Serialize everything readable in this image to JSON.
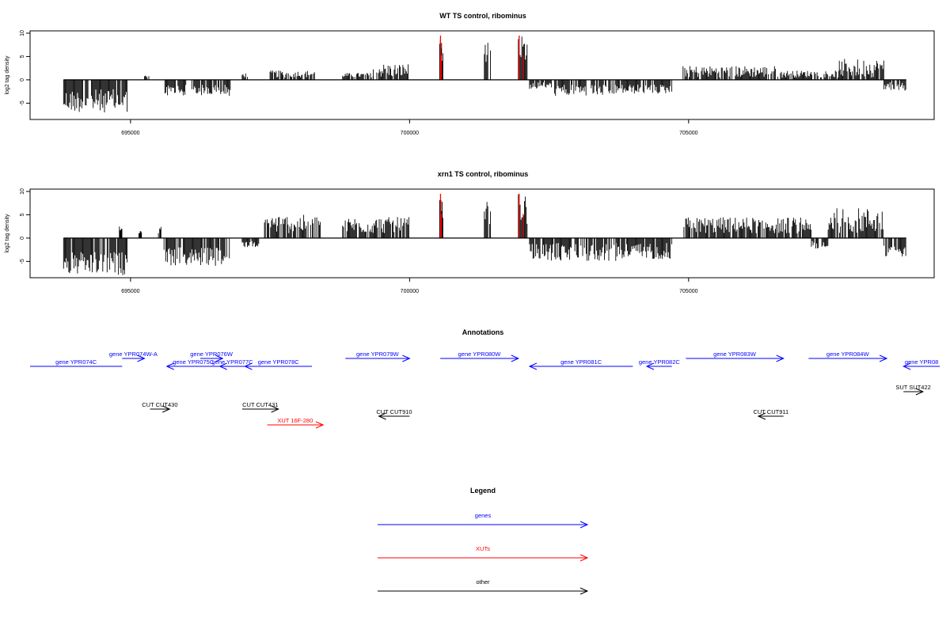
{
  "chart_data": [
    {
      "type": "bar",
      "title": "WT TS control, ribominus",
      "ylabel": "log2 tag density",
      "xlabel": "",
      "xlim": [
        693200,
        709400
      ],
      "ylim": [
        -8.5,
        10.5
      ],
      "xticks": [
        695000,
        700000,
        705000
      ],
      "xtick_labels": [
        "695000",
        "700000",
        "705000"
      ],
      "yticks": [
        -5,
        0,
        5,
        10
      ],
      "ytick_labels": [
        "-5",
        "0",
        "5",
        "10"
      ],
      "baseline_x": [
        693800,
        708900
      ],
      "highlight_color": "#ff0000",
      "bar_color": "#000000",
      "segments": [
        {
          "x": [
            693800,
            694950
          ],
          "y": [
            -2,
            -7
          ]
        },
        {
          "x": [
            695250,
            695350
          ],
          "y": [
            0.5,
            1
          ]
        },
        {
          "x": [
            695600,
            696000
          ],
          "y": [
            -1,
            -3.5
          ]
        },
        {
          "x": [
            696100,
            696800
          ],
          "y": [
            -1,
            -3.5
          ]
        },
        {
          "x": [
            697000,
            697100
          ],
          "y": [
            0.5,
            1.5
          ]
        },
        {
          "x": [
            697500,
            698300
          ],
          "y": [
            0.5,
            2
          ]
        },
        {
          "x": [
            698800,
            699350
          ],
          "y": [
            0.5,
            1.5
          ]
        },
        {
          "x": [
            699350,
            700000
          ],
          "y": [
            0.5,
            3.5
          ]
        },
        {
          "x": [
            700540,
            700600
          ],
          "y": [
            4,
            9.5
          ],
          "highlight": true
        },
        {
          "x": [
            701340,
            701450
          ],
          "y": [
            3,
            8
          ]
        },
        {
          "x": [
            701950,
            702120
          ],
          "y": [
            3,
            9.5
          ],
          "highlight": true
        },
        {
          "x": [
            702150,
            702550
          ],
          "y": [
            -0.5,
            -2
          ]
        },
        {
          "x": [
            702600,
            703700
          ],
          "y": [
            -1,
            -3.5
          ]
        },
        {
          "x": [
            703700,
            704700
          ],
          "y": [
            -1,
            -3
          ]
        },
        {
          "x": [
            704900,
            706600
          ],
          "y": [
            0.5,
            3
          ]
        },
        {
          "x": [
            706600,
            707700
          ],
          "y": [
            0.5,
            2
          ]
        },
        {
          "x": [
            707700,
            708500
          ],
          "y": [
            0.5,
            4.5
          ]
        },
        {
          "x": [
            708500,
            708900
          ],
          "y": [
            -0.5,
            -2.5
          ]
        }
      ]
    },
    {
      "type": "bar",
      "title": "xrn1 TS control, ribominus",
      "ylabel": "log2 tag density",
      "xlabel": "",
      "xlim": [
        693200,
        709400
      ],
      "ylim": [
        -8.5,
        10.5
      ],
      "xticks": [
        695000,
        700000,
        705000
      ],
      "xtick_labels": [
        "695000",
        "700000",
        "705000"
      ],
      "yticks": [
        -5,
        0,
        5,
        10
      ],
      "ytick_labels": [
        "-5",
        "0",
        "5",
        "10"
      ],
      "baseline_x": [
        693800,
        708900
      ],
      "highlight_color": "#ff0000",
      "bar_color": "#000000",
      "segments": [
        {
          "x": [
            693800,
            694950
          ],
          "y": [
            -3,
            -8
          ]
        },
        {
          "x": [
            694800,
            694850
          ],
          "y": [
            1,
            2.5
          ]
        },
        {
          "x": [
            695150,
            695200
          ],
          "y": [
            1,
            1.5
          ]
        },
        {
          "x": [
            695500,
            695550
          ],
          "y": [
            1,
            2.5
          ]
        },
        {
          "x": [
            695600,
            696800
          ],
          "y": [
            -2,
            -6
          ]
        },
        {
          "x": [
            697000,
            697300
          ],
          "y": [
            -0.5,
            -2
          ]
        },
        {
          "x": [
            697400,
            698400
          ],
          "y": [
            1,
            5
          ]
        },
        {
          "x": [
            698800,
            700000
          ],
          "y": [
            1,
            4.5
          ]
        },
        {
          "x": [
            700540,
            700600
          ],
          "y": [
            4,
            9.5
          ],
          "highlight": true
        },
        {
          "x": [
            701340,
            701450
          ],
          "y": [
            3,
            8
          ]
        },
        {
          "x": [
            701950,
            702120
          ],
          "y": [
            3,
            9.5
          ],
          "highlight": true
        },
        {
          "x": [
            702150,
            703700
          ],
          "y": [
            -1,
            -5
          ]
        },
        {
          "x": [
            703700,
            704700
          ],
          "y": [
            -1,
            -4.5
          ]
        },
        {
          "x": [
            704900,
            707200
          ],
          "y": [
            1,
            4.5
          ]
        },
        {
          "x": [
            707200,
            707500
          ],
          "y": [
            -0.5,
            -2.5
          ]
        },
        {
          "x": [
            707500,
            708500
          ],
          "y": [
            1,
            6.5
          ]
        },
        {
          "x": [
            708500,
            708900
          ],
          "y": [
            -1,
            -4
          ]
        }
      ]
    }
  ],
  "annotations": {
    "title": "Annotations",
    "features": [
      {
        "label": "gene YPR074C",
        "start": 693200,
        "end": 694850,
        "dir": "-",
        "color": "#0000ff",
        "row": 3
      },
      {
        "label": "gene YPR074W-A",
        "start": 694850,
        "end": 695250,
        "dir": "+",
        "color": "#0000ff",
        "row": 2
      },
      {
        "label": "gene YPR075C",
        "start": 695650,
        "end": 696600,
        "dir": "-",
        "color": "#0000ff",
        "row": 3
      },
      {
        "label": "gene YPR076W",
        "start": 696250,
        "end": 696650,
        "dir": "+",
        "color": "#0000ff",
        "row": 2
      },
      {
        "label": "gene YPR077C",
        "start": 696600,
        "end": 697050,
        "dir": "-",
        "color": "#0000ff",
        "row": 3
      },
      {
        "label": "gene YPR078C",
        "start": 697050,
        "end": 698250,
        "dir": "-",
        "color": "#0000ff",
        "row": 3
      },
      {
        "label": "gene YPR079W",
        "start": 698850,
        "end": 700000,
        "dir": "+",
        "color": "#0000ff",
        "row": 2
      },
      {
        "label": "gene YPR080W",
        "start": 700550,
        "end": 701950,
        "dir": "+",
        "color": "#0000ff",
        "row": 2
      },
      {
        "label": "gene YPR081C",
        "start": 702150,
        "end": 704000,
        "dir": "-",
        "color": "#0000ff",
        "row": 3
      },
      {
        "label": "gene YPR082C",
        "start": 704250,
        "end": 704700,
        "dir": "-",
        "color": "#0000ff",
        "row": 3
      },
      {
        "label": "gene YPR083W",
        "start": 704950,
        "end": 706700,
        "dir": "+",
        "color": "#0000ff",
        "row": 2
      },
      {
        "label": "gene YPR084W",
        "start": 707150,
        "end": 708550,
        "dir": "+",
        "color": "#0000ff",
        "row": 2
      },
      {
        "label": "gene YPR08",
        "start": 708850,
        "end": 709500,
        "dir": "-",
        "color": "#0000ff",
        "row": 3
      },
      {
        "label": "SUT SUT422",
        "start": 708850,
        "end": 709200,
        "dir": "+",
        "color": "#000000",
        "row": 4
      },
      {
        "label": "CUT CUT430",
        "start": 695350,
        "end": 695700,
        "dir": "+",
        "color": "#000000",
        "row": 5
      },
      {
        "label": "CUT CUT431",
        "start": 697000,
        "end": 697650,
        "dir": "+",
        "color": "#000000",
        "row": 5
      },
      {
        "label": "XUT 16F-280",
        "start": 697450,
        "end": 698450,
        "dir": "+",
        "color": "#ff0000",
        "row": 7
      },
      {
        "label": "CUT CUT910",
        "start": 699450,
        "end": 700000,
        "dir": "-",
        "color": "#000000",
        "row": 6
      },
      {
        "label": "CUT CUT911",
        "start": 706250,
        "end": 706700,
        "dir": "-",
        "color": "#000000",
        "row": 6
      }
    ]
  },
  "legend": {
    "title": "Legend",
    "items": [
      {
        "label": "genes",
        "color": "#0000ff"
      },
      {
        "label": "XUTs",
        "color": "#ff0000"
      },
      {
        "label": "other",
        "color": "#000000"
      }
    ]
  }
}
